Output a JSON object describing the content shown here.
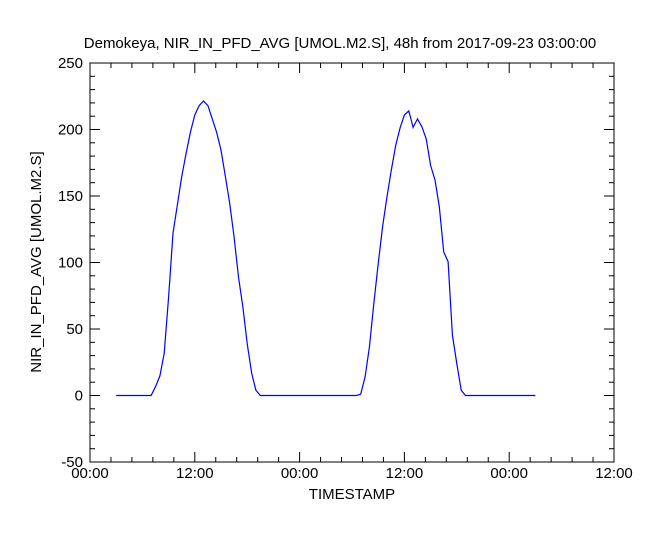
{
  "chart_data": {
    "type": "line",
    "title": "Demokeya, NIR_IN_PFD_AVG [UMOL.M2.S], 48h from  2017-09-23 03:00:00",
    "xlabel": "TIMESTAMP",
    "ylabel": "NIR_IN_PFD_AVG [UMOL.M2.S]",
    "xlim_hours": [
      0,
      60
    ],
    "ylim": [
      -50,
      250
    ],
    "x_tick_hours": [
      0,
      12,
      24,
      36,
      48,
      60
    ],
    "x_tick_labels": [
      "00:00",
      "12:00",
      "00:00",
      "12:00",
      "00:00",
      "12:00"
    ],
    "y_ticks": [
      -50,
      0,
      50,
      100,
      150,
      200,
      250
    ],
    "y_tick_labels": [
      "-50",
      "0",
      "50",
      "100",
      "150",
      "200",
      "250"
    ],
    "grid": false,
    "line_color": "#0000ff",
    "x_start_hour": 3,
    "x_step_hours": 0.5,
    "values": [
      0,
      0,
      0,
      0,
      0,
      0,
      0,
      0,
      0,
      6.6,
      14.7,
      31.7,
      74,
      122,
      143,
      164.5,
      182,
      198,
      211,
      218,
      221.4,
      218,
      208,
      198,
      184.6,
      164.5,
      144.5,
      119,
      89,
      67,
      39,
      17,
      4,
      0,
      0,
      0,
      0,
      0,
      0,
      0,
      0,
      0,
      0,
      0,
      0,
      0,
      0,
      0,
      0,
      0,
      0,
      0,
      0,
      0,
      0,
      0,
      1,
      14,
      37,
      69,
      99,
      127,
      149,
      169.5,
      188,
      201,
      211,
      214,
      201.6,
      208,
      202,
      193,
      173,
      162,
      142,
      108,
      100.6,
      45.5,
      24,
      4,
      0,
      0,
      0,
      0,
      0,
      0,
      0,
      0,
      0,
      0,
      0,
      0,
      0,
      0,
      0,
      0,
      0
    ]
  }
}
